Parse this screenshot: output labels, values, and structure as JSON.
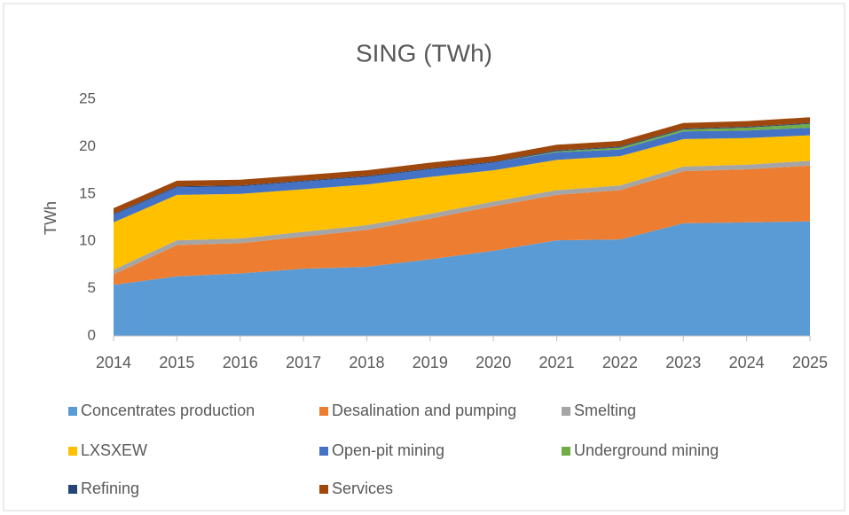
{
  "chart_data": {
    "type": "stacked_area",
    "title": "SING (TWh)",
    "y_label": "TWh",
    "categories": [
      "2014",
      "2015",
      "2016",
      "2017",
      "2018",
      "2019",
      "2020",
      "2021",
      "2022",
      "2023",
      "2024",
      "2025"
    ],
    "ylim": [
      0,
      25
    ],
    "yticks": [
      0,
      5,
      10,
      15,
      20,
      25
    ],
    "grid": false,
    "legend": "bottom",
    "series": [
      {
        "name": "Concentrates production",
        "color": "#5b9bd5",
        "values": [
          5.4,
          6.3,
          6.6,
          7.1,
          7.3,
          8.1,
          9.0,
          10.1,
          10.2,
          11.9,
          12.0,
          12.1
        ]
      },
      {
        "name": "Desalination and pumping",
        "color": "#ed7d31",
        "values": [
          1.1,
          3.3,
          3.2,
          3.4,
          3.9,
          4.3,
          4.7,
          4.8,
          5.2,
          5.5,
          5.6,
          5.9
        ]
      },
      {
        "name": "Smelting",
        "color": "#a5a5a5",
        "values": [
          0.5,
          0.5,
          0.5,
          0.5,
          0.5,
          0.5,
          0.5,
          0.5,
          0.5,
          0.5,
          0.5,
          0.5
        ]
      },
      {
        "name": "LXSXEW",
        "color": "#ffc000",
        "values": [
          5.0,
          4.8,
          4.7,
          4.5,
          4.3,
          3.9,
          3.3,
          3.2,
          3.1,
          2.9,
          2.8,
          2.7
        ]
      },
      {
        "name": "Open-pit mining",
        "color": "#4472c4",
        "values": [
          0.8,
          0.8,
          0.8,
          0.8,
          0.8,
          0.8,
          0.8,
          0.8,
          0.7,
          0.8,
          0.8,
          0.8
        ]
      },
      {
        "name": "Underground mining",
        "color": "#70ad47",
        "values": [
          0,
          0,
          0,
          0,
          0,
          0,
          0,
          0.1,
          0.2,
          0.2,
          0.3,
          0.4
        ]
      },
      {
        "name": "Refining",
        "color": "#264478",
        "values": [
          0.1,
          0.1,
          0.1,
          0.1,
          0.1,
          0.1,
          0.1,
          0.1,
          0.1,
          0.1,
          0.1,
          0.1
        ]
      },
      {
        "name": "Services",
        "color": "#9e480e",
        "values": [
          0.6,
          0.6,
          0.6,
          0.6,
          0.6,
          0.6,
          0.6,
          0.6,
          0.6,
          0.6,
          0.6,
          0.6
        ]
      }
    ]
  }
}
